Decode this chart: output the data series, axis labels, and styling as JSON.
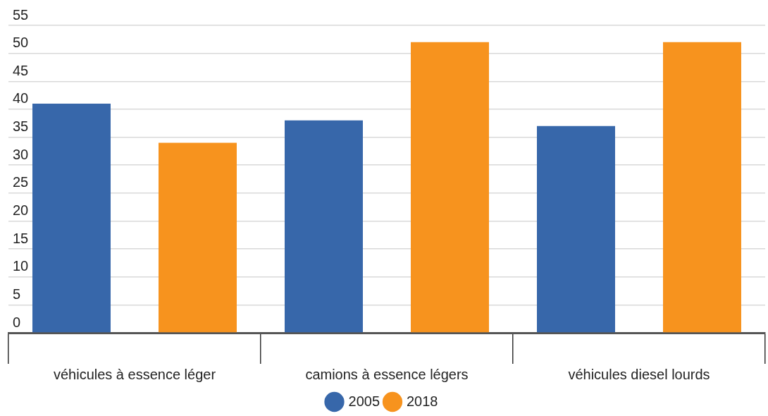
{
  "chart_data": {
    "type": "bar",
    "categories": [
      "véhicules à essence léger",
      "camions à essence légers",
      "véhicules diesel lourds"
    ],
    "series": [
      {
        "name": "2005",
        "color": "#3767aa",
        "values": [
          41,
          38,
          37
        ]
      },
      {
        "name": "2018",
        "color": "#f7931e",
        "values": [
          34,
          52,
          52
        ]
      }
    ],
    "ylim": [
      0,
      55
    ],
    "yticks": [
      0,
      5,
      10,
      15,
      20,
      25,
      30,
      35,
      40,
      45,
      50,
      55
    ],
    "grid": "y",
    "legend": "bottom"
  }
}
